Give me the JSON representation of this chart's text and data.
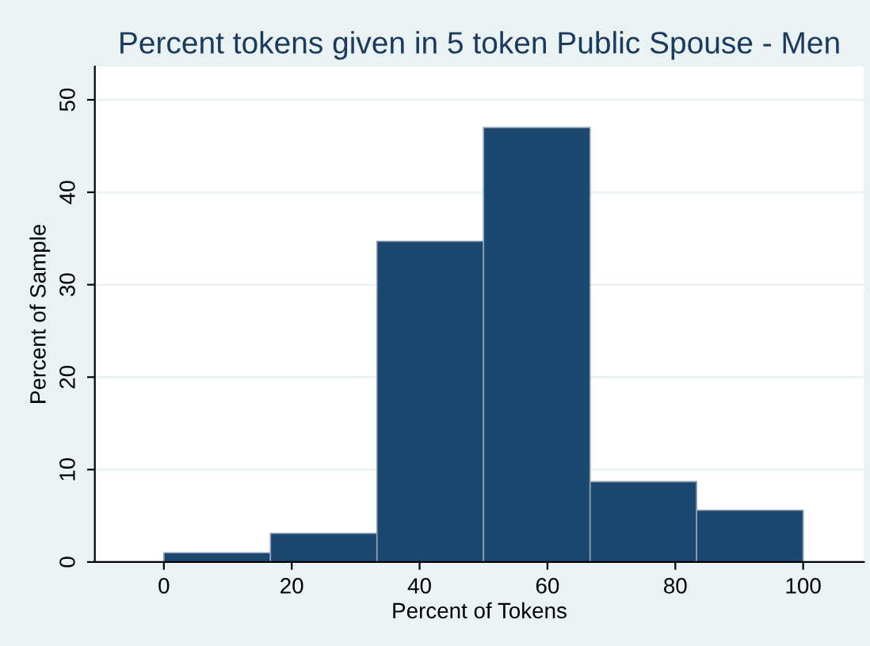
{
  "chart_data": {
    "type": "histogram",
    "title": "Percent tokens given in 5 token Public Spouse - Men",
    "xlabel": "Percent of Tokens",
    "ylabel": "Percent of Sample",
    "bins": [
      0,
      16.67,
      33.33,
      50,
      66.67,
      83.33,
      100
    ],
    "values": [
      1.0,
      3.1,
      34.7,
      47.0,
      8.7,
      5.6
    ],
    "color": "#1c4870",
    "xlim": [
      -10.8,
      109.5
    ],
    "xticks": [
      0,
      20,
      40,
      60,
      80,
      100
    ],
    "ylim": [
      0,
      53.6
    ],
    "yticks": [
      0,
      10,
      20,
      30,
      40,
      50
    ],
    "grid": "y"
  }
}
